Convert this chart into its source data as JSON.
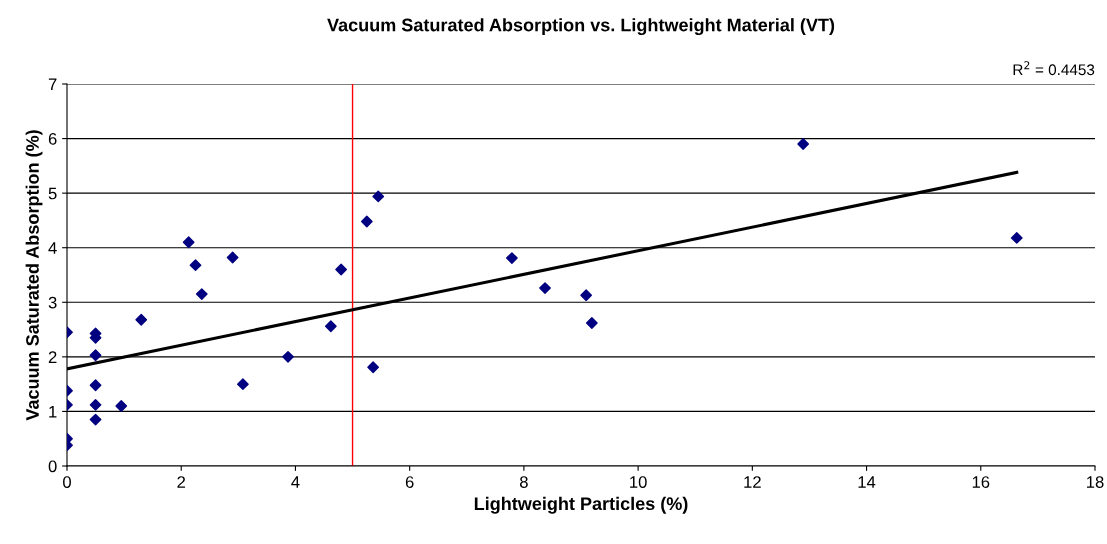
{
  "chart_data": {
    "type": "scatter",
    "title": "Vacuum Saturated Absorption vs. Lightweight Material (VT)",
    "xlabel": "Lightweight Particles (%)",
    "ylabel": "Vacuum Saturated Absorption (%)",
    "series": [
      {
        "color": "#000080",
        "marker": "diamond",
        "x": [
          0,
          0,
          0,
          0,
          0,
          0.5,
          0.5,
          0.5,
          0.5,
          0.5,
          0.5,
          0.95,
          1.3,
          2.13,
          2.25,
          2.36,
          3.08,
          2.9,
          3.87,
          4.62,
          4.8,
          5.25,
          5.45,
          5.36,
          7.79,
          8.37,
          9.09,
          9.19,
          12.89,
          16.63
        ],
        "values": [
          2.45,
          1.38,
          1.12,
          0.5,
          0.38,
          2.43,
          2.35,
          2.03,
          1.48,
          1.12,
          0.85,
          1.1,
          2.68,
          4.1,
          3.68,
          3.15,
          1.5,
          3.82,
          2.0,
          2.56,
          3.6,
          4.48,
          4.94,
          1.81,
          3.81,
          3.26,
          3.13,
          2.62,
          5.9,
          4.18
        ]
      },
      {
        "type": "line",
        "color": "#000000",
        "marker": "none",
        "x": [
          0,
          16.63
        ],
        "values": [
          1.78,
          5.38
        ]
      }
    ],
    "ref_lines": [
      {
        "axis": "x",
        "value": 5,
        "color": "#ff0000"
      }
    ],
    "annotations": [
      "R$^{2}$ = 0.4453"
    ],
    "xlim": [
      0,
      18
    ],
    "xticks": [
      0,
      2,
      4,
      6,
      8,
      10,
      12,
      14,
      16,
      18
    ],
    "ylim": [
      0,
      7
    ],
    "yticks": [
      0,
      1,
      2,
      3,
      4,
      5,
      6,
      7
    ],
    "grid": "y",
    "legend": false
  }
}
